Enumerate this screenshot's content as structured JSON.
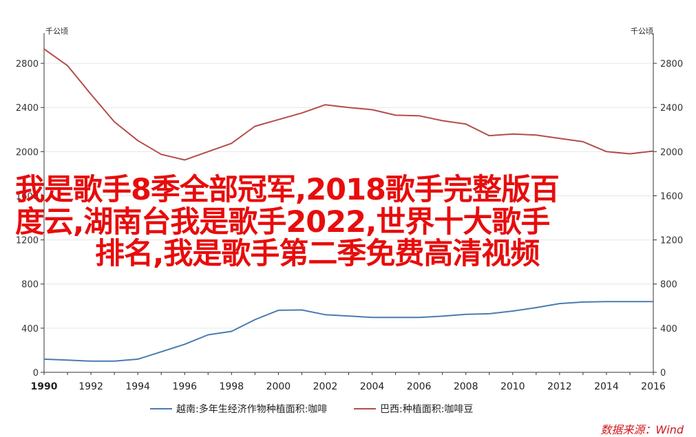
{
  "chart_data": {
    "type": "line",
    "x": [
      1990,
      1991,
      1992,
      1993,
      1994,
      1995,
      1996,
      1997,
      1998,
      1999,
      2000,
      2001,
      2002,
      2003,
      2004,
      2005,
      2006,
      2007,
      2008,
      2009,
      2010,
      2011,
      2012,
      2013,
      2014,
      2015,
      2016
    ],
    "xlim": [
      1990,
      2016
    ],
    "x_ticks": [
      "1990",
      "1992",
      "1994",
      "1996",
      "1998",
      "2000",
      "2002",
      "2004",
      "2006",
      "2008",
      "2010",
      "2012",
      "2014",
      "2016"
    ],
    "ylim": [
      0,
      3000
    ],
    "y_ticks": [
      "0",
      "400",
      "800",
      "1200",
      "1600",
      "2000",
      "2400",
      "2800"
    ],
    "y_unit_left": "千公顷",
    "y_unit_right": "千公顷",
    "series": [
      {
        "name": "越南:多年生经济作物种植面积:咖啡",
        "color": "#4a7bb0",
        "values": [
          119,
          111,
          101,
          101,
          119,
          186,
          254,
          340,
          371,
          477,
          562,
          565,
          522,
          510,
          497,
          497,
          497,
          509,
          526,
          531,
          555,
          586,
          623,
          637,
          641,
          641,
          641
        ]
      },
      {
        "name": "巴西:种植面积:咖啡豆",
        "color": "#b44c4a",
        "values": [
          2930,
          2780,
          2520,
          2270,
          2100,
          1975,
          1925,
          2000,
          2075,
          2230,
          2290,
          2350,
          2425,
          2400,
          2380,
          2330,
          2325,
          2280,
          2250,
          2145,
          2160,
          2150,
          2120,
          2090,
          2000,
          1980,
          2005
        ]
      }
    ]
  },
  "overlay_text": {
    "line1": "我是歌手8季全部冠军,2018歌手完整版百",
    "line2": "度云,湖南台我是歌手2022,世界十大歌手",
    "line3": "排名,我是歌手第二季免费高清视频"
  },
  "source": "数据来源：Wind"
}
